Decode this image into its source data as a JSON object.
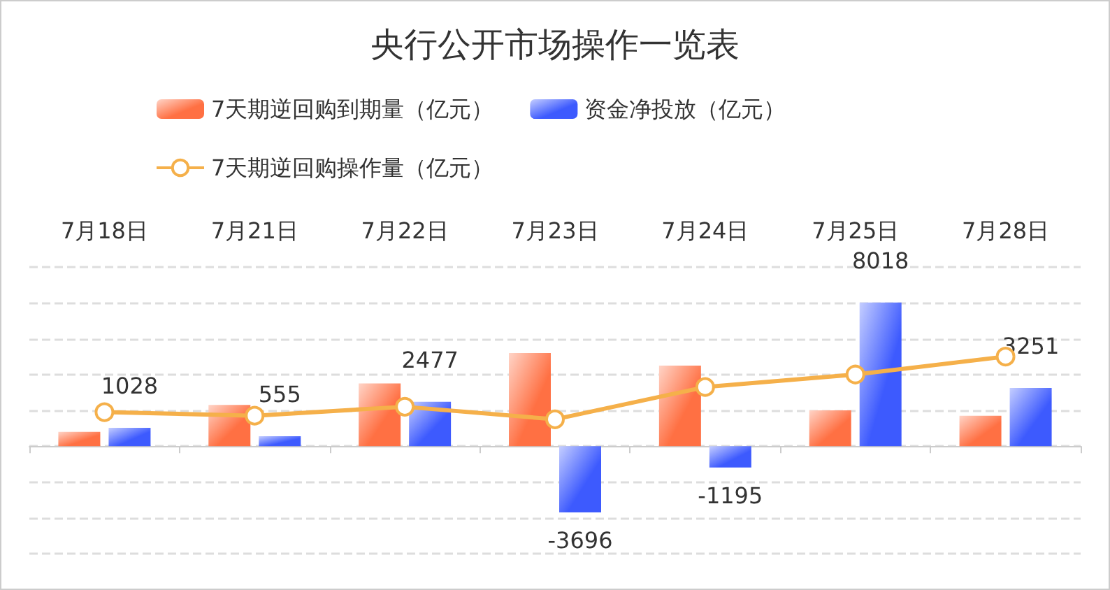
{
  "chart_data": {
    "type": "bar",
    "title": "央行公开市场操作一览表",
    "categories": [
      "7月18日",
      "7月21日",
      "7月22日",
      "7月23日",
      "7月24日",
      "7月25日",
      "7月28日"
    ],
    "ylim": [
      -6000,
      10000
    ],
    "yticks": [
      {
        "value": -6000,
        "label": null
      },
      {
        "value": -4000,
        "label": null
      },
      {
        "value": -2000,
        "label": null
      },
      {
        "value": 0,
        "label": null
      },
      {
        "value": 2000,
        "label": null
      },
      {
        "value": 4000,
        "label": null
      },
      {
        "value": 6000,
        "label": null
      },
      {
        "value": 8000,
        "label": null
      },
      {
        "value": 10000,
        "label": null
      }
    ],
    "tick_labels": "x",
    "grid": "y",
    "legend": "top",
    "marker": "circle",
    "series": [
      {
        "name": "7天期逆回购到期量（亿元）",
        "color": "#ff7043",
        "values": [
          800,
          2300,
          3500,
          5200,
          4500,
          2000,
          1700
        ]
      },
      {
        "name": "资金净投放（亿元）",
        "color": "#3d5afe",
        "values": [
          1028,
          555,
          2477,
          -3696,
          -1195,
          8018,
          3251
        ],
        "value_labels": [
          "1028",
          "555",
          "2477",
          "-3696",
          "-1195",
          "8018",
          "3251"
        ]
      },
      {
        "name": "7天期逆回购操作量（亿元）",
        "type": "line",
        "color": "#f5b04a",
        "values": [
          1900,
          1700,
          2200,
          1500,
          3300,
          4000,
          5000
        ]
      }
    ]
  }
}
